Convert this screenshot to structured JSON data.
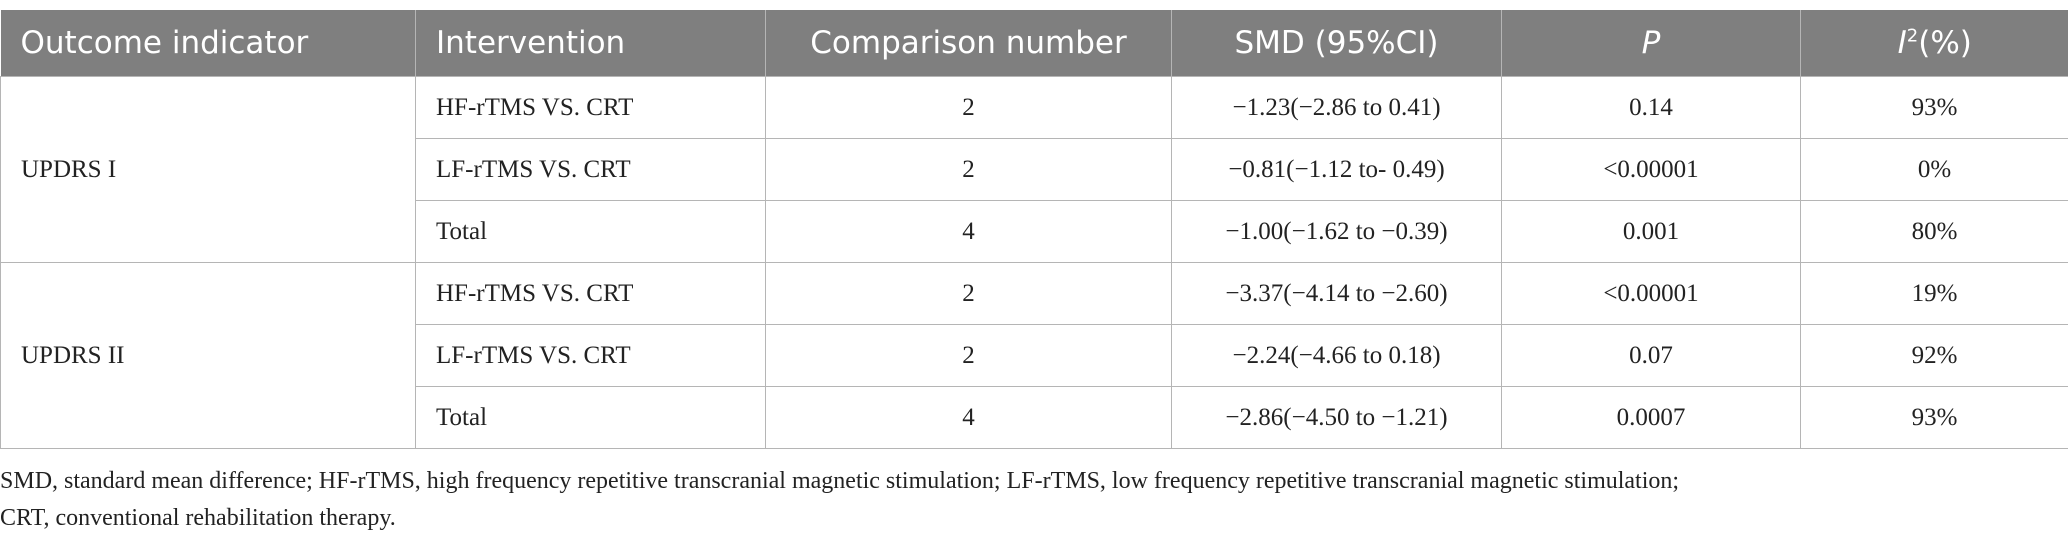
{
  "table": {
    "columns": [
      "Outcome indicator",
      "Intervention",
      "Comparison number",
      "SMD (95%CI)",
      "P",
      {
        "base": "I",
        "sup": "2",
        "unit": "(%)"
      }
    ],
    "groups": [
      {
        "outcome": "UPDRS I",
        "rows": [
          [
            "HF-rTMS VS. CRT",
            2,
            "−1.23(−2.86 to 0.41)",
            "0.14",
            "93%"
          ],
          [
            "LF-rTMS VS. CRT",
            2,
            "−0.81(−1.12 to- 0.49)",
            "<0.00001",
            "0%"
          ],
          [
            "Total",
            4,
            "−1.00(−1.62 to −0.39)",
            "0.001",
            "80%"
          ]
        ]
      },
      {
        "outcome": "UPDRS II",
        "rows": [
          [
            "HF-rTMS VS. CRT",
            2,
            "−3.37(−4.14 to −2.60)",
            "<0.00001",
            "19%"
          ],
          [
            "LF-rTMS VS. CRT",
            2,
            "−2.24(−4.66 to 0.18)",
            "0.07",
            "92%"
          ],
          [
            "Total",
            4,
            "−2.86(−4.50 to −1.21)",
            "0.0007",
            "93%"
          ]
        ]
      }
    ]
  },
  "footnote": [
    "SMD, standard mean difference; HF-rTMS, high frequency repetitive transcranial magnetic stimulation; LF-rTMS, low frequency repetitive transcranial magnetic stimulation;",
    "CRT, conventional rehabilitation therapy."
  ]
}
